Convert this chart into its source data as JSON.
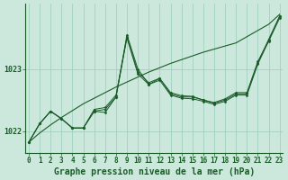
{
  "background_color": "#cce8dc",
  "plot_bg_color": "#cce8dc",
  "grid_color": "#99ccbb",
  "line_color": "#1a5c28",
  "marker_color": "#1a5c28",
  "xlabel": "Graphe pression niveau de la mer (hPa)",
  "xlim": [
    -0.3,
    23.3
  ],
  "ylim": [
    1021.65,
    1024.05
  ],
  "yticks": [
    1022,
    1023
  ],
  "tick_fontsize": 5.5,
  "axis_label_fontsize": 7.0,
  "smooth_line": [
    1021.82,
    1021.97,
    1022.1,
    1022.22,
    1022.33,
    1022.44,
    1022.53,
    1022.62,
    1022.71,
    1022.79,
    1022.87,
    1022.95,
    1023.02,
    1023.09,
    1023.15,
    1023.21,
    1023.27,
    1023.32,
    1023.37,
    1023.42,
    1023.52,
    1023.62,
    1023.72,
    1023.88
  ],
  "jagged_lines": [
    [
      1021.82,
      1022.12,
      1022.32,
      1022.2,
      1022.05,
      1022.05,
      1022.35,
      1022.38,
      1022.58,
      1023.52,
      1022.95,
      1022.78,
      1022.85,
      1022.62,
      1022.57,
      1022.56,
      1022.5,
      1022.46,
      1022.52,
      1022.62,
      1022.62,
      1023.12,
      1023.46,
      1023.85
    ],
    [
      1021.82,
      1022.12,
      1022.32,
      1022.2,
      1022.05,
      1022.05,
      1022.32,
      1022.3,
      1022.55,
      1023.55,
      1023.0,
      1022.75,
      1022.85,
      1022.6,
      1022.55,
      1022.55,
      1022.5,
      1022.45,
      1022.5,
      1022.6,
      1022.6,
      1023.1,
      1023.48,
      1023.85
    ],
    [
      1021.82,
      1022.12,
      1022.32,
      1022.2,
      1022.05,
      1022.05,
      1022.32,
      1022.35,
      1022.55,
      1023.5,
      1022.92,
      1022.75,
      1022.82,
      1022.58,
      1022.53,
      1022.52,
      1022.48,
      1022.43,
      1022.48,
      1022.58,
      1022.58,
      1023.08,
      1023.45,
      1023.82
    ]
  ]
}
